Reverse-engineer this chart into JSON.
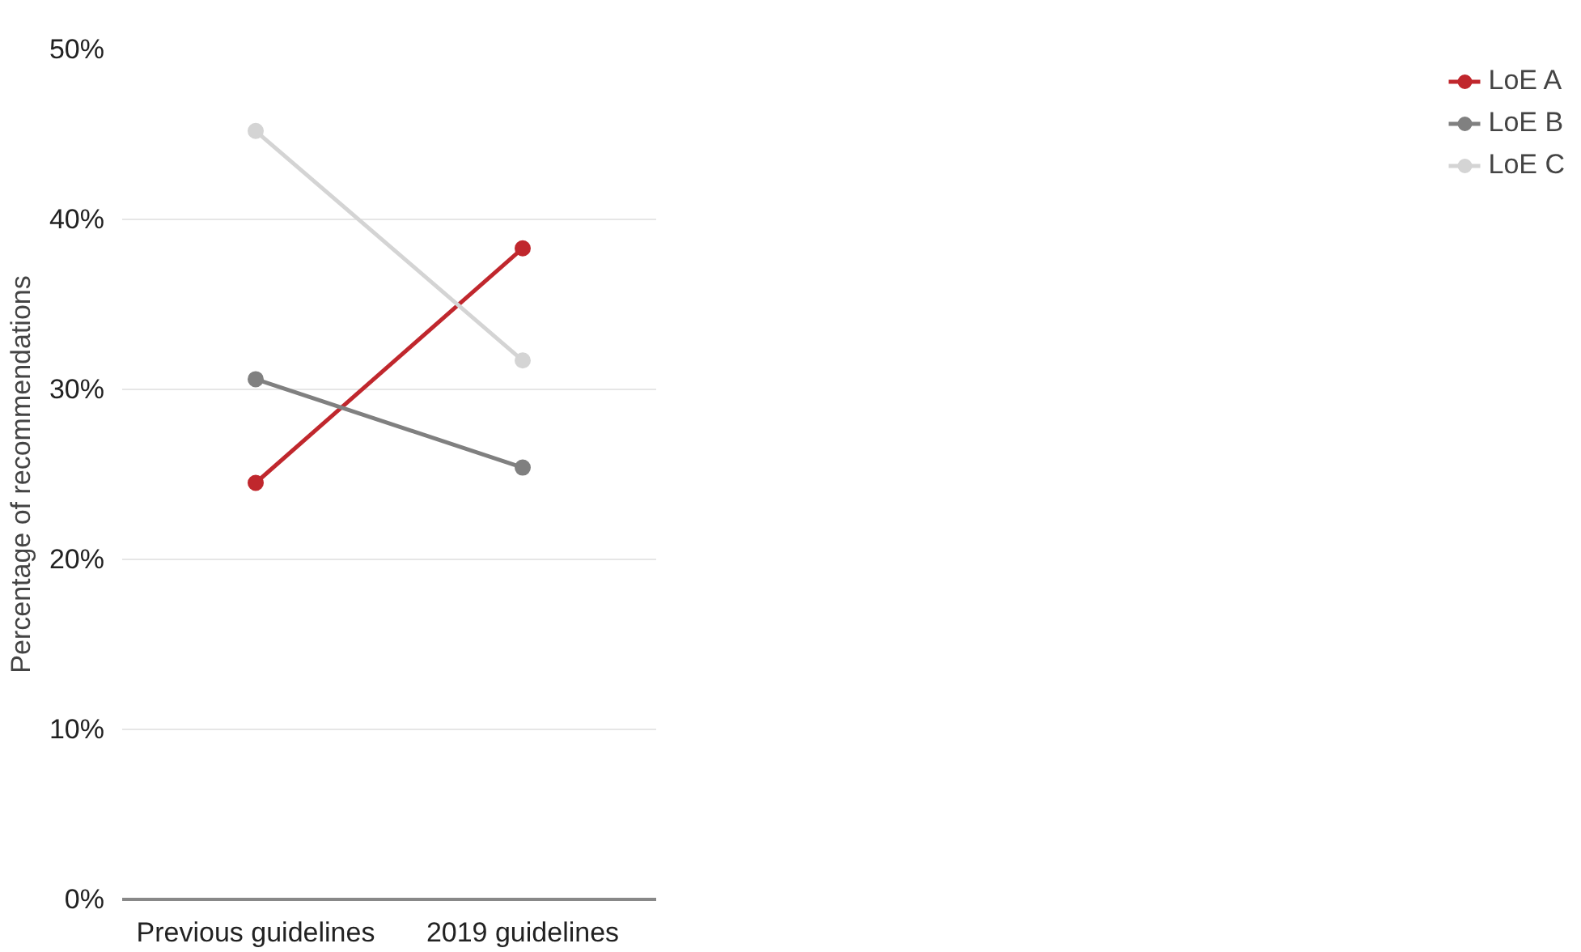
{
  "chart_data": {
    "type": "line",
    "ylabel": "Percentage of recommendations",
    "categories": [
      "Previous guidelines",
      "2019 guidelines"
    ],
    "series": [
      {
        "name": "LoE A",
        "color": "#c0272d",
        "values": [
          24.5,
          38.3
        ]
      },
      {
        "name": "LoE B",
        "color": "#808080",
        "values": [
          30.6,
          25.4
        ]
      },
      {
        "name": "LoE C",
        "color": "#d4d4d4",
        "values": [
          45.2,
          31.7
        ]
      }
    ],
    "ylim": [
      0,
      50
    ],
    "yticks": [
      {
        "value": 0,
        "label": "0%"
      },
      {
        "value": 10,
        "label": "10%"
      },
      {
        "value": 20,
        "label": "20%"
      },
      {
        "value": 30,
        "label": "30%"
      },
      {
        "value": 40,
        "label": "40%"
      },
      {
        "value": 50,
        "label": "50%"
      }
    ],
    "grid": "y",
    "legend": "right",
    "marker": "circle",
    "line_style": "solid"
  }
}
